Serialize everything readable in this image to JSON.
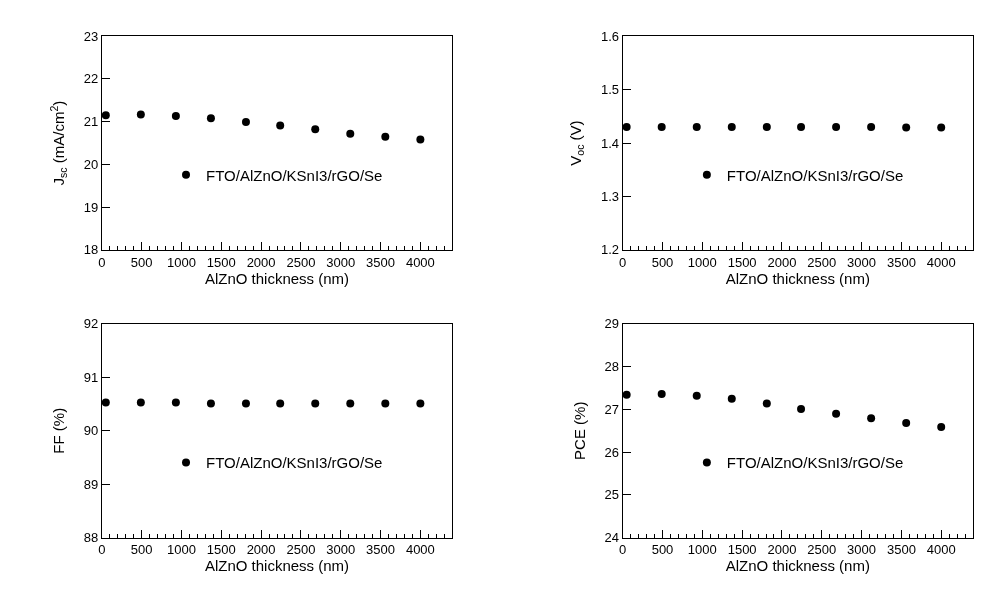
{
  "chart_data": [
    {
      "type": "scatter",
      "xlabel": "AlZnO thickness (nm)",
      "ylabel": "J$_{sc}$ (mA/cm$^{2}$)",
      "x": [
        50,
        490,
        930,
        1370,
        1810,
        2240,
        2680,
        3120,
        3560,
        4000
      ],
      "xlim": [
        0,
        4400
      ],
      "xticks": [
        0,
        500,
        1000,
        1500,
        2000,
        2500,
        3000,
        3500,
        4000
      ],
      "ylim": [
        18,
        23
      ],
      "yticks": [
        18,
        19,
        20,
        21,
        22,
        23
      ],
      "legend": "center",
      "marker": "circle",
      "series": [
        {
          "name": "FTO/AlZnO/KSnI3/rGO/Se",
          "color": "#000000",
          "values": [
            21.15,
            21.17,
            21.13,
            21.08,
            20.99,
            20.91,
            20.82,
            20.72,
            20.65,
            20.58
          ]
        }
      ]
    },
    {
      "type": "scatter",
      "xlabel": "AlZnO thickness (nm)",
      "ylabel": "V$_{oc}$ (V)",
      "x": [
        50,
        490,
        930,
        1370,
        1810,
        2240,
        2680,
        3120,
        3560,
        4000
      ],
      "xlim": [
        0,
        4400
      ],
      "xticks": [
        0,
        500,
        1000,
        1500,
        2000,
        2500,
        3000,
        3500,
        4000
      ],
      "ylim": [
        1.2,
        1.6
      ],
      "yticks": [
        1.2,
        1.3,
        1.4,
        1.5,
        1.6
      ],
      "legend": "center",
      "marker": "circle",
      "series": [
        {
          "name": "FTO/AlZnO/KSnI3/rGO/Se",
          "color": "#000000",
          "values": [
            1.43,
            1.43,
            1.43,
            1.43,
            1.43,
            1.43,
            1.43,
            1.43,
            1.429,
            1.429
          ]
        }
      ]
    },
    {
      "type": "scatter",
      "xlabel": "AlZnO thickness (nm)",
      "ylabel": "FF (%)",
      "x": [
        50,
        490,
        930,
        1370,
        1810,
        2240,
        2680,
        3120,
        3560,
        4000
      ],
      "xlim": [
        0,
        4400
      ],
      "xticks": [
        0,
        500,
        1000,
        1500,
        2000,
        2500,
        3000,
        3500,
        4000
      ],
      "ylim": [
        88,
        92
      ],
      "yticks": [
        88,
        89,
        90,
        91,
        92
      ],
      "legend": "center",
      "marker": "circle",
      "series": [
        {
          "name": "FTO/AlZnO/KSnI3/rGO/Se",
          "color": "#000000",
          "values": [
            90.53,
            90.53,
            90.53,
            90.51,
            90.51,
            90.51,
            90.51,
            90.51,
            90.51,
            90.51
          ]
        }
      ]
    },
    {
      "type": "scatter",
      "xlabel": "AlZnO thickness (nm)",
      "ylabel": "PCE (%)",
      "x": [
        50,
        490,
        930,
        1370,
        1810,
        2240,
        2680,
        3120,
        3560,
        4000
      ],
      "xlim": [
        0,
        4400
      ],
      "xticks": [
        0,
        500,
        1000,
        1500,
        2000,
        2500,
        3000,
        3500,
        4000
      ],
      "ylim": [
        24,
        29
      ],
      "yticks": [
        24,
        25,
        26,
        27,
        28,
        29
      ],
      "legend": "center",
      "marker": "circle",
      "series": [
        {
          "name": "FTO/AlZnO/KSnI3/rGO/Se",
          "color": "#000000",
          "values": [
            27.34,
            27.36,
            27.32,
            27.25,
            27.14,
            27.01,
            26.9,
            26.79,
            26.68,
            26.59
          ]
        }
      ]
    }
  ]
}
